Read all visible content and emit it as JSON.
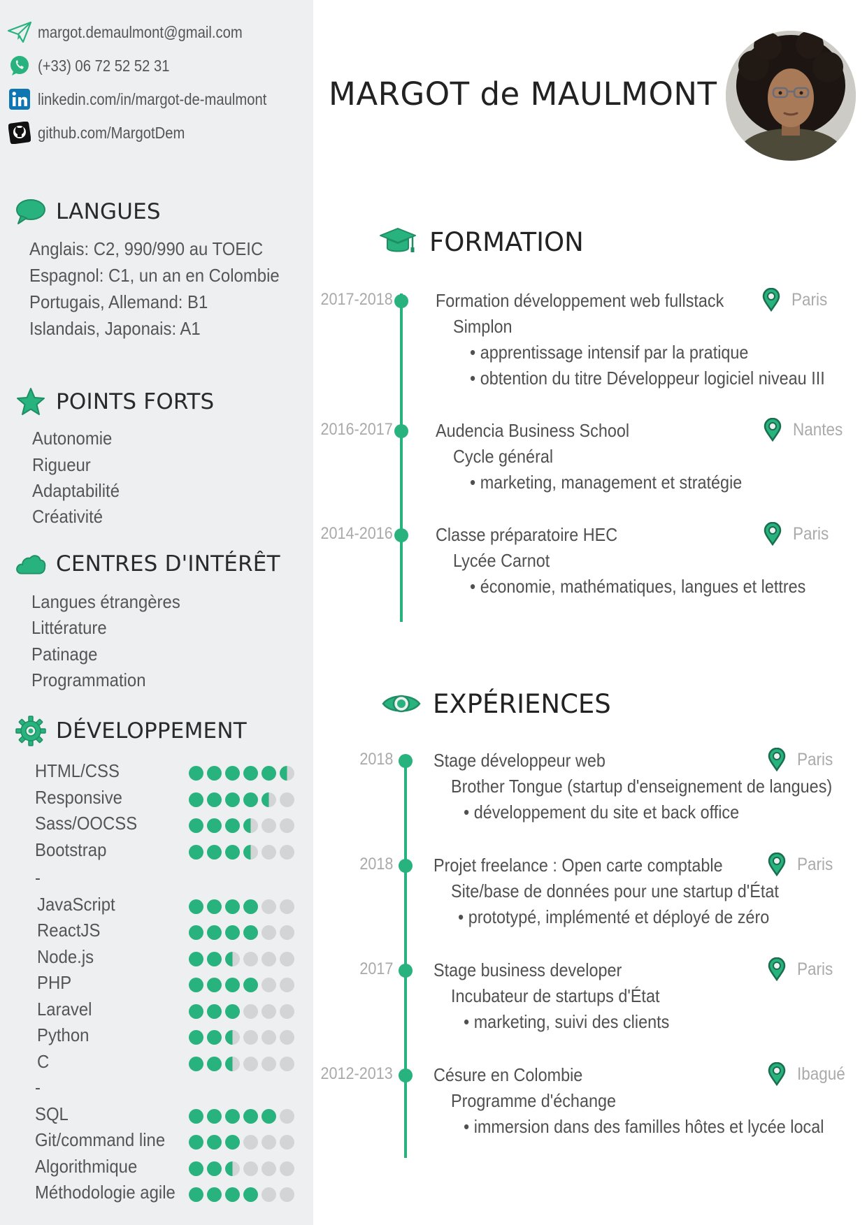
{
  "header": {
    "name": "MARGOT de MAULMONT"
  },
  "contact": {
    "email": "margot.demaulmont@gmail.com",
    "phone": "(+33) 06 72 52 52 31",
    "linkedin": "linkedin.com/in/margot-de-maulmont",
    "github": "github.com/MargotDem"
  },
  "langues": {
    "title": "LANGUES",
    "items": [
      "Anglais: C2, 990/990 au TOEIC",
      "Espagnol: C1, un an en Colombie",
      "Portugais, Allemand: B1",
      "Islandais, Japonais: A1"
    ]
  },
  "points_forts": {
    "title": "POINTS FORTS",
    "items": [
      "Autonomie",
      "Rigueur",
      "Adaptabilité",
      "Créativité"
    ]
  },
  "interets": {
    "title": "CENTRES D'INTÉRÊT",
    "items": [
      "Langues étrangères",
      "Littérature",
      "Patinage",
      "Programmation"
    ]
  },
  "developpement": {
    "title": "DÉVELOPPEMENT",
    "skills": [
      {
        "name": "HTML/CSS",
        "level": 5.5
      },
      {
        "name": "Responsive",
        "level": 4.5
      },
      {
        "name": "Sass/OOCSS",
        "level": 3.5
      },
      {
        "name": "Bootstrap",
        "level": 3.5
      },
      {
        "name": "-",
        "level": null
      },
      {
        "name": "JavaScript",
        "level": 4
      },
      {
        "name": "ReactJS",
        "level": 4
      },
      {
        "name": "Node.js",
        "level": 2.5
      },
      {
        "name": "PHP",
        "level": 4
      },
      {
        "name": "Laravel",
        "level": 3
      },
      {
        "name": "Python",
        "level": 2.5
      },
      {
        "name": "C",
        "level": 2.5
      },
      {
        "name": "-",
        "level": null
      },
      {
        "name": "SQL",
        "level": 5
      },
      {
        "name": "Git/command line",
        "level": 3
      },
      {
        "name": "Algorithmique",
        "level": 2.5
      },
      {
        "name": "Méthodologie agile",
        "level": 4
      }
    ],
    "max_level": 6
  },
  "formation": {
    "title": "FORMATION",
    "entries": [
      {
        "date": "2017-2018",
        "title": "Formation développement web fullstack",
        "location": "Paris",
        "sub": "Simplon",
        "bullets": [
          "• apprentissage intensif par la pratique",
          "• obtention du titre Développeur logiciel niveau III"
        ]
      },
      {
        "date": "2016-2017",
        "title": "Audencia Business School",
        "location": "Nantes",
        "sub": "Cycle général",
        "bullets": [
          "• marketing, management et stratégie"
        ]
      },
      {
        "date": "2014-2016",
        "title": "Classe préparatoire HEC",
        "location": "Paris",
        "sub": "Lycée Carnot",
        "bullets": [
          "• économie, mathématiques, langues et lettres"
        ]
      }
    ]
  },
  "experiences": {
    "title": "EXPÉRIENCES",
    "entries": [
      {
        "date": "2018",
        "title": "Stage développeur web",
        "location": "Paris",
        "sub": "Brother Tongue (startup d'enseignement de langues)",
        "bullets": [
          "• développement du site et back office"
        ]
      },
      {
        "date": "2018",
        "title": "Projet freelance : Open carte comptable",
        "location": "Paris",
        "sub": "Site/base de données pour une startup d'État",
        "bullets": [
          "• prototypé, implémenté et déployé de zéro"
        ]
      },
      {
        "date": "2017",
        "title": "Stage business developer",
        "location": "Paris",
        "sub": "Incubateur de startups d'État",
        "bullets": [
          "• marketing, suivi des clients"
        ]
      },
      {
        "date": "2012-2013",
        "title": "Césure en Colombie",
        "location": "Ibagué",
        "sub": "Programme d'échange",
        "bullets": [
          "• immersion dans des familles hôtes et lycée local"
        ]
      }
    ]
  },
  "icons": {
    "email": "paper-plane-icon",
    "phone": "whatsapp-icon",
    "linkedin": "linkedin-icon",
    "github": "github-icon",
    "langues": "speech-bubble-icon",
    "points_forts": "star-icon",
    "interets": "cloud-icon",
    "developpement": "gear-icon",
    "formation": "graduation-cap-icon",
    "experiences": "eye-icon",
    "location": "map-pin-icon"
  },
  "colors": {
    "accent": "#27b27e",
    "sidebar_bg": "#eeeff0",
    "dot_empty": "#d3d4d6",
    "muted": "#aaaaaa"
  }
}
